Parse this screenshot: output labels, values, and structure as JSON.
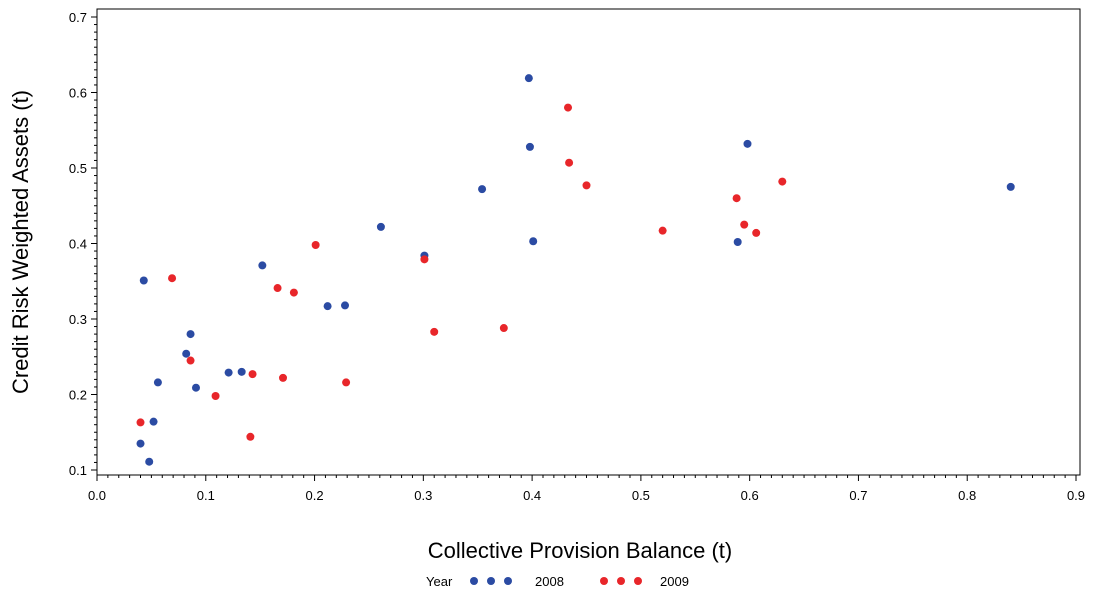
{
  "chart_data": {
    "type": "scatter",
    "title": "",
    "xlabel": "Collective Provision Balance (t)",
    "ylabel": "Credit Risk Weighted Assets (t)",
    "xlim": [
      0.0,
      0.9
    ],
    "ylim": [
      0.1,
      0.7
    ],
    "x_ticks": [
      "0.0",
      "0.1",
      "0.2",
      "0.3",
      "0.4",
      "0.5",
      "0.6",
      "0.7",
      "0.8",
      "0.9"
    ],
    "y_ticks": [
      "0.1",
      "0.2",
      "0.3",
      "0.4",
      "0.5",
      "0.6",
      "0.7"
    ],
    "grid": false,
    "legend": {
      "title": "Year",
      "placement": "bottom"
    },
    "series": [
      {
        "name": "2008",
        "color": "#2b4ba3",
        "points": [
          [
            0.04,
            0.135
          ],
          [
            0.043,
            0.351
          ],
          [
            0.048,
            0.111
          ],
          [
            0.052,
            0.164
          ],
          [
            0.056,
            0.216
          ],
          [
            0.082,
            0.254
          ],
          [
            0.086,
            0.28
          ],
          [
            0.091,
            0.209
          ],
          [
            0.121,
            0.229
          ],
          [
            0.133,
            0.23
          ],
          [
            0.152,
            0.371
          ],
          [
            0.212,
            0.317
          ],
          [
            0.228,
            0.318
          ],
          [
            0.261,
            0.422
          ],
          [
            0.301,
            0.384
          ],
          [
            0.354,
            0.472
          ],
          [
            0.397,
            0.619
          ],
          [
            0.398,
            0.528
          ],
          [
            0.401,
            0.403
          ],
          [
            0.589,
            0.402
          ],
          [
            0.598,
            0.532
          ],
          [
            0.84,
            0.475
          ]
        ]
      },
      {
        "name": "2009",
        "color": "#e8262a",
        "points": [
          [
            0.04,
            0.163
          ],
          [
            0.069,
            0.354
          ],
          [
            0.086,
            0.245
          ],
          [
            0.109,
            0.198
          ],
          [
            0.141,
            0.144
          ],
          [
            0.143,
            0.227
          ],
          [
            0.166,
            0.341
          ],
          [
            0.171,
            0.222
          ],
          [
            0.181,
            0.335
          ],
          [
            0.201,
            0.398
          ],
          [
            0.229,
            0.216
          ],
          [
            0.301,
            0.379
          ],
          [
            0.31,
            0.283
          ],
          [
            0.374,
            0.288
          ],
          [
            0.433,
            0.58
          ],
          [
            0.434,
            0.507
          ],
          [
            0.45,
            0.477
          ],
          [
            0.52,
            0.417
          ],
          [
            0.588,
            0.46
          ],
          [
            0.595,
            0.425
          ],
          [
            0.606,
            0.414
          ],
          [
            0.63,
            0.482
          ]
        ]
      }
    ]
  }
}
